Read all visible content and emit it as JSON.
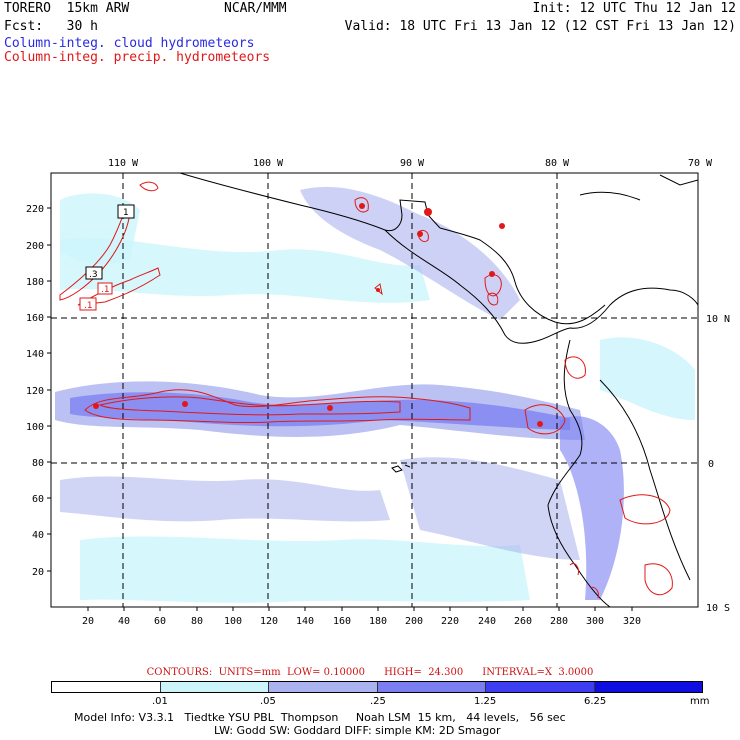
{
  "header": {
    "model": "TORERO  15km ARW",
    "center": "NCAR/MMM",
    "init": "Init: 12 UTC Thu 12 Jan 12",
    "fcst": "Fcst:   30 h",
    "valid": "Valid: 18 UTC Fri 13 Jan 12 (12 CST Fri 13 Jan 12)",
    "field1": "Column-integ. cloud hydrometeors",
    "field2": "Column-integ. precip. hydrometeors"
  },
  "colors": {
    "field1": "#2a2ae0",
    "field2": "#e01818",
    "contour": "#e01818",
    "coast": "#000000"
  },
  "axes": {
    "x_ticks": [
      "20",
      "40",
      "60",
      "80",
      "100",
      "120",
      "140",
      "160",
      "180",
      "200",
      "220",
      "240",
      "260",
      "280",
      "300",
      "320"
    ],
    "y_ticks": [
      "20",
      "40",
      "60",
      "80",
      "100",
      "120",
      "140",
      "160",
      "180",
      "200",
      "220"
    ],
    "lon_labels": [
      "110 W",
      "100 W",
      "90 W",
      "80 W",
      "70 W"
    ],
    "lat_labels": [
      "10 N",
      "0",
      "10 S"
    ]
  },
  "contour_labels": [
    ".1",
    "1",
    ".3",
    ".1"
  ],
  "contour_info": "CONTOURS:  UNITS=mm  LOW= 0.10000      HIGH=  24.300      INTERVAL=X  3.0000",
  "colorbar": {
    "unit": "mm",
    "ticks": [
      ".01",
      ".05",
      ".25",
      "1.25",
      "6.25"
    ],
    "colors": [
      "#ffffff",
      "#ccf5fb",
      "#aab2ef",
      "#7a7ef0",
      "#3c3ef0",
      "#0e0ee0"
    ]
  },
  "footer": {
    "line1": "Model Info: V3.3.1   Tiedtke YSU PBL  Thompson     Noah LSM  15 km,   44 levels,   56 sec",
    "line2": "LW: Godd SW: Goddard DIFF: simple KM: 2D Smagor"
  }
}
